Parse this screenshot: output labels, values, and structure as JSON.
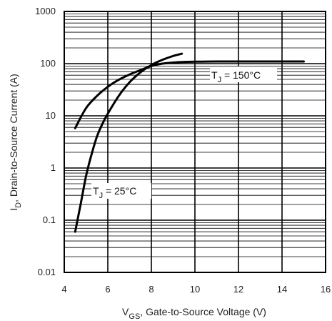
{
  "chart_data": {
    "type": "line",
    "title": "",
    "xlabel": {
      "main": "V",
      "sub": "GS",
      "rest": ", Gate-to-Source Voltage (V)"
    },
    "ylabel": {
      "main": "I",
      "sub": "D",
      "rest": ", Drain-to-Source Current  (A)"
    },
    "xlim": [
      4,
      16
    ],
    "ylim": [
      0.01,
      1000
    ],
    "yscale": "log",
    "grid": true,
    "x_ticks": [
      "4",
      "6",
      "8",
      "10",
      "12",
      "14",
      "16"
    ],
    "y_ticks": [
      "0.01",
      "0.1",
      "1",
      "10",
      "100",
      "1000"
    ],
    "series": [
      {
        "label": {
          "main": "T",
          "sub": "J",
          "rest": " = 150°C"
        },
        "x": [
          4.5,
          5.0,
          5.5,
          6.0,
          6.5,
          7.0,
          7.5,
          8.0,
          8.5,
          9.0,
          9.5,
          10.0,
          11.0,
          12.0,
          13.0,
          14.0,
          15.0
        ],
        "y": [
          5.8,
          14,
          24,
          36,
          49,
          62,
          75,
          90,
          100,
          105,
          108,
          109,
          110,
          110,
          110,
          110,
          110
        ]
      },
      {
        "label": {
          "main": "T",
          "sub": "J",
          "rest": " = 25°C"
        },
        "x": [
          4.5,
          4.75,
          5.0,
          5.25,
          5.5,
          5.75,
          6.0,
          6.5,
          7.0,
          7.5,
          8.0,
          8.5,
          9.0,
          9.4
        ],
        "y": [
          0.06,
          0.2,
          0.7,
          1.8,
          4.0,
          7.0,
          11,
          24,
          44,
          68,
          94,
          118,
          140,
          155
        ]
      }
    ]
  }
}
